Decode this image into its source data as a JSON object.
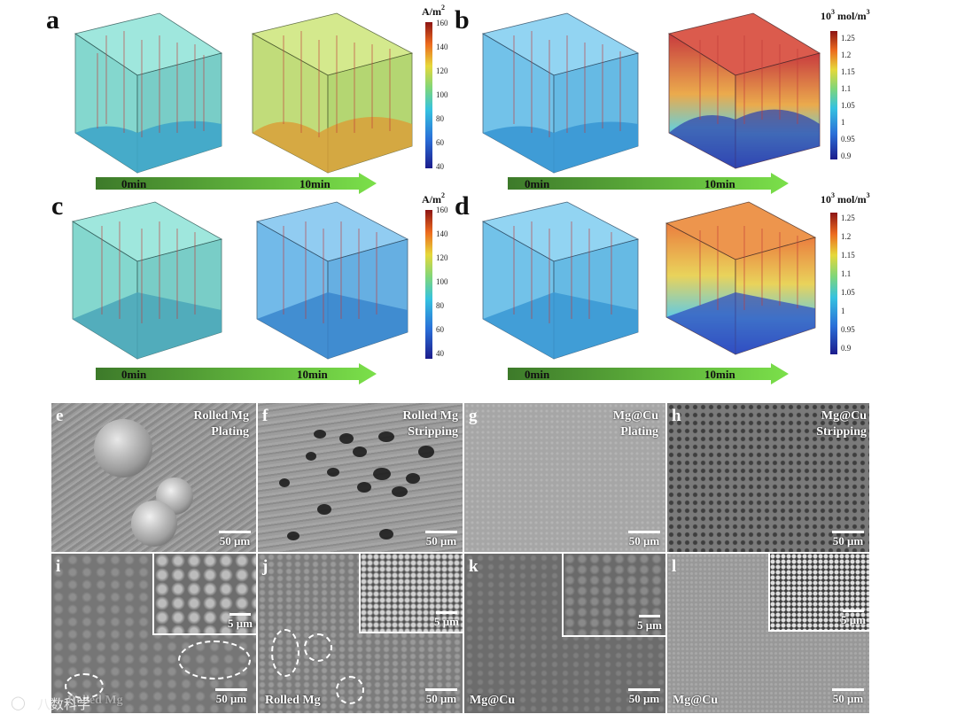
{
  "panels_sim": [
    {
      "id": "a",
      "letter": "a",
      "unit": "A/m",
      "unit_sup": "2",
      "ticks": [
        "160",
        "140",
        "120",
        "100",
        "80",
        "60",
        "40"
      ],
      "arrow_start": "0min",
      "arrow_end": "10min",
      "cube1_color": "#6fd1c6",
      "cube2_color": "#b7d763"
    },
    {
      "id": "b",
      "letter": "b",
      "unit": "10",
      "unit_sup": "3",
      "unit_rest": " mol/m",
      "unit_sup2": "3",
      "ticks": [
        "1.25",
        "1.2",
        "1.15",
        "1.1",
        "1.05",
        "1",
        "0.95",
        "0.9"
      ],
      "arrow_start": "0min",
      "arrow_end": "10min",
      "cube1_color": "#5ab8e6",
      "cube2_color": "#e0553a"
    },
    {
      "id": "c",
      "letter": "c",
      "unit": "A/m",
      "unit_sup": "2",
      "ticks": [
        "160",
        "140",
        "120",
        "100",
        "80",
        "60",
        "40"
      ],
      "arrow_start": "0min",
      "arrow_end": "10min",
      "cube1_color": "#6fd1c6",
      "cube2_color": "#5aaee6"
    },
    {
      "id": "d",
      "letter": "d",
      "unit": "10",
      "unit_sup": "3",
      "unit_rest": " mol/m",
      "unit_sup2": "3",
      "ticks": [
        "1.25",
        "1.2",
        "1.15",
        "1.1",
        "1.05",
        "1",
        "0.95",
        "0.9"
      ],
      "arrow_start": "0min",
      "arrow_end": "10min",
      "cube1_color": "#5ab8e6",
      "cube2_color": "#ef9a3a"
    }
  ],
  "sem": {
    "e": {
      "letter": "e",
      "title1": "Rolled  Mg",
      "title2": "Plating",
      "scale": "50 μm"
    },
    "f": {
      "letter": "f",
      "title1": "Rolled  Mg",
      "title2": "Stripping",
      "scale": "50 μm"
    },
    "g": {
      "letter": "g",
      "title1": "Mg@Cu",
      "title2": "Plating",
      "scale": "50 μm"
    },
    "h": {
      "letter": "h",
      "title1": "Mg@Cu",
      "title2": "Stripping",
      "scale": "50 μm"
    },
    "i": {
      "letter": "i",
      "scale": "50 μm",
      "inset_scale": "5 μm",
      "corner": "Rolled Mg"
    },
    "j": {
      "letter": "j",
      "scale": "50 μm",
      "inset_scale": "5 μm",
      "corner": "Rolled Mg"
    },
    "k": {
      "letter": "k",
      "scale": "50 μm",
      "inset_scale": "5 μm",
      "corner": "Mg@Cu"
    },
    "l": {
      "letter": "l",
      "scale": "50 μm",
      "inset_scale": "5 μm",
      "corner": "Mg@Cu"
    }
  },
  "watermark": "八数科学"
}
